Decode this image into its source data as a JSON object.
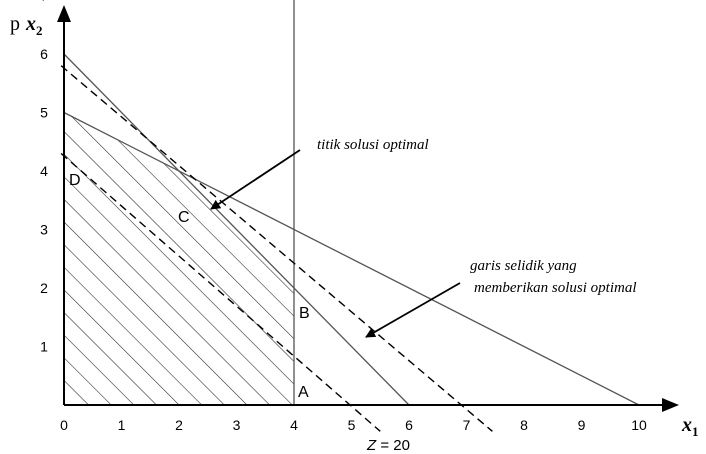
{
  "axes": {
    "y_prefix": "p",
    "y_label_main": "x",
    "y_label_sub": "2",
    "x_label_main": "x",
    "x_label_sub": "1",
    "x_ticks": [
      "0",
      "1",
      "2",
      "3",
      "4",
      "5",
      "6",
      "7",
      "8",
      "9",
      "10"
    ],
    "y_ticks": [
      "1",
      "2",
      "3",
      "4",
      "5",
      "6",
      "7",
      "8"
    ],
    "xlim": [
      0,
      10.5
    ],
    "ylim": [
      0,
      8.6
    ]
  },
  "constraints": [
    {
      "kind": "line",
      "from": [
        0,
        6
      ],
      "to": [
        6,
        0
      ]
    },
    {
      "kind": "line",
      "from": [
        0,
        5
      ],
      "to": [
        10,
        0
      ]
    },
    {
      "kind": "vertical",
      "x": 4,
      "y_from": 0,
      "y_to": 7.1
    }
  ],
  "dashed_lines": [
    {
      "from": [
        -0.05,
        4.3
      ],
      "to": [
        5.5,
        -0.45
      ]
    },
    {
      "from": [
        -0.05,
        5.8
      ],
      "to": [
        7.45,
        -0.45
      ]
    }
  ],
  "feasible_region": [
    [
      0,
      0
    ],
    [
      4,
      0
    ],
    [
      4,
      2
    ],
    [
      2,
      4
    ],
    [
      0,
      5
    ]
  ],
  "points": [
    {
      "label": "A",
      "at": [
        4,
        0
      ]
    },
    {
      "label": "B",
      "at": [
        4,
        2
      ]
    },
    {
      "label": "C",
      "at": [
        2,
        4
      ]
    },
    {
      "label": "D",
      "at": [
        0,
        5
      ]
    }
  ],
  "z_label": {
    "italic": "Z",
    "rest": " = 20"
  },
  "annotations": [
    {
      "text": "titik solusi optimal",
      "points_to": "C"
    },
    {
      "text_line1": "garis selidik  yang",
      "text_line2": "memberikan solusi optimal",
      "points_to": "optimal-dashed-line"
    }
  ],
  "colors": {
    "ink": "#000000",
    "line": "#555555",
    "hatch": "#222222"
  }
}
